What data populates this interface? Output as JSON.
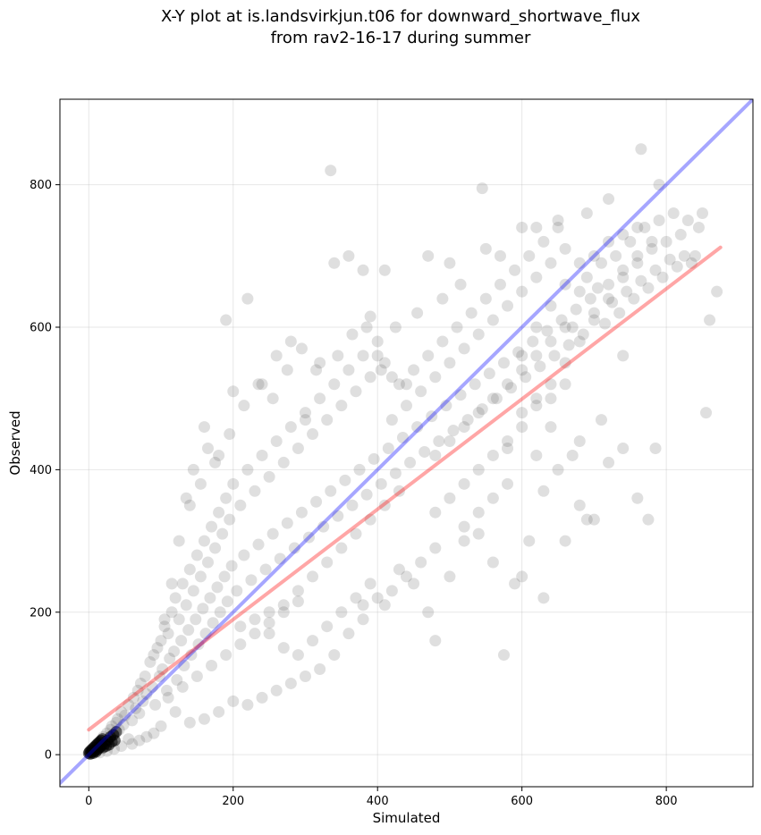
{
  "chart_data": {
    "type": "scatter",
    "title": [
      "X-Y plot at is.landsvirkjun.t06 for downward_shortwave_flux",
      "from rav2-16-17 during summer"
    ],
    "xlabel": "Simulated",
    "ylabel": "Observed",
    "xlim": [
      -40,
      920
    ],
    "ylim": [
      -45,
      920
    ],
    "xticks": [
      0,
      200,
      400,
      600,
      800
    ],
    "yticks": [
      0,
      200,
      400,
      600,
      800
    ],
    "grid": true,
    "reference_line": {
      "type": "1:1",
      "color": "#0000ff",
      "alpha": 0.35
    },
    "fit_line": {
      "type": "regression",
      "from": [
        0,
        35
      ],
      "to": [
        875,
        712
      ],
      "color": "#ff0000",
      "alpha": 0.35
    },
    "point_color": "#000000",
    "point_alpha": 0.15,
    "points": [
      [
        2,
        3
      ],
      [
        5,
        5
      ],
      [
        8,
        10
      ],
      [
        10,
        6
      ],
      [
        12,
        15
      ],
      [
        15,
        12
      ],
      [
        18,
        20
      ],
      [
        20,
        25
      ],
      [
        22,
        18
      ],
      [
        25,
        30
      ],
      [
        28,
        22
      ],
      [
        30,
        35
      ],
      [
        32,
        40
      ],
      [
        35,
        28
      ],
      [
        38,
        45
      ],
      [
        40,
        50
      ],
      [
        42,
        35
      ],
      [
        45,
        60
      ],
      [
        48,
        42
      ],
      [
        50,
        55
      ],
      [
        55,
        70
      ],
      [
        60,
        48
      ],
      [
        62,
        80
      ],
      [
        65,
        65
      ],
      [
        68,
        90
      ],
      [
        70,
        58
      ],
      [
        72,
        100
      ],
      [
        75,
        75
      ],
      [
        78,
        110
      ],
      [
        80,
        85
      ],
      [
        85,
        130
      ],
      [
        88,
        95
      ],
      [
        90,
        140
      ],
      [
        92,
        70
      ],
      [
        95,
        150
      ],
      [
        98,
        110
      ],
      [
        100,
        160
      ],
      [
        102,
        120
      ],
      [
        105,
        180
      ],
      [
        108,
        90
      ],
      [
        110,
        170
      ],
      [
        112,
        135
      ],
      [
        115,
        200
      ],
      [
        118,
        145
      ],
      [
        120,
        220
      ],
      [
        122,
        105
      ],
      [
        125,
        190
      ],
      [
        128,
        160
      ],
      [
        130,
        240
      ],
      [
        132,
        125
      ],
      [
        135,
        210
      ],
      [
        138,
        175
      ],
      [
        140,
        260
      ],
      [
        142,
        140
      ],
      [
        145,
        230
      ],
      [
        148,
        190
      ],
      [
        150,
        280
      ],
      [
        152,
        155
      ],
      [
        155,
        250
      ],
      [
        158,
        205
      ],
      [
        160,
        300
      ],
      [
        162,
        170
      ],
      [
        165,
        270
      ],
      [
        168,
        220
      ],
      [
        170,
        320
      ],
      [
        172,
        185
      ],
      [
        175,
        290
      ],
      [
        178,
        235
      ],
      [
        180,
        340
      ],
      [
        182,
        200
      ],
      [
        185,
        310
      ],
      [
        188,
        250
      ],
      [
        190,
        360
      ],
      [
        192,
        215
      ],
      [
        195,
        330
      ],
      [
        198,
        265
      ],
      [
        200,
        380
      ],
      [
        205,
        230
      ],
      [
        210,
        350
      ],
      [
        215,
        280
      ],
      [
        220,
        400
      ],
      [
        225,
        245
      ],
      [
        230,
        370
      ],
      [
        235,
        295
      ],
      [
        240,
        420
      ],
      [
        245,
        260
      ],
      [
        250,
        390
      ],
      [
        255,
        310
      ],
      [
        260,
        440
      ],
      [
        265,
        275
      ],
      [
        270,
        410
      ],
      [
        275,
        325
      ],
      [
        280,
        460
      ],
      [
        285,
        290
      ],
      [
        290,
        430
      ],
      [
        295,
        340
      ],
      [
        300,
        480
      ],
      [
        305,
        305
      ],
      [
        310,
        450
      ],
      [
        315,
        355
      ],
      [
        320,
        500
      ],
      [
        325,
        320
      ],
      [
        330,
        470
      ],
      [
        335,
        370
      ],
      [
        340,
        520
      ],
      [
        345,
        335
      ],
      [
        350,
        490
      ],
      [
        355,
        385
      ],
      [
        360,
        540
      ],
      [
        365,
        350
      ],
      [
        370,
        510
      ],
      [
        375,
        400
      ],
      [
        380,
        560
      ],
      [
        385,
        365
      ],
      [
        390,
        530
      ],
      [
        395,
        415
      ],
      [
        400,
        580
      ],
      [
        405,
        380
      ],
      [
        410,
        550
      ],
      [
        415,
        430
      ],
      [
        420,
        470
      ],
      [
        425,
        395
      ],
      [
        430,
        520
      ],
      [
        435,
        445
      ],
      [
        440,
        490
      ],
      [
        445,
        410
      ],
      [
        450,
        540
      ],
      [
        455,
        460
      ],
      [
        460,
        510
      ],
      [
        465,
        425
      ],
      [
        470,
        560
      ],
      [
        475,
        475
      ],
      [
        480,
        530
      ],
      [
        485,
        440
      ],
      [
        490,
        580
      ],
      [
        495,
        490
      ],
      [
        500,
        550
      ],
      [
        505,
        455
      ],
      [
        510,
        600
      ],
      [
        515,
        505
      ],
      [
        520,
        570
      ],
      [
        525,
        470
      ],
      [
        530,
        620
      ],
      [
        535,
        520
      ],
      [
        540,
        590
      ],
      [
        545,
        485
      ],
      [
        550,
        640
      ],
      [
        555,
        535
      ],
      [
        560,
        610
      ],
      [
        565,
        500
      ],
      [
        570,
        660
      ],
      [
        575,
        550
      ],
      [
        580,
        630
      ],
      [
        585,
        515
      ],
      [
        590,
        680
      ],
      [
        595,
        565
      ],
      [
        600,
        650
      ],
      [
        605,
        530
      ],
      [
        610,
        700
      ],
      [
        615,
        580
      ],
      [
        620,
        670
      ],
      [
        625,
        545
      ],
      [
        630,
        720
      ],
      [
        635,
        595
      ],
      [
        640,
        690
      ],
      [
        645,
        560
      ],
      [
        650,
        740
      ],
      [
        655,
        610
      ],
      [
        660,
        710
      ],
      [
        665,
        575
      ],
      [
        670,
        600
      ],
      [
        675,
        625
      ],
      [
        680,
        650
      ],
      [
        685,
        590
      ],
      [
        690,
        670
      ],
      [
        695,
        640
      ],
      [
        700,
        620
      ],
      [
        705,
        655
      ],
      [
        710,
        690
      ],
      [
        715,
        605
      ],
      [
        720,
        660
      ],
      [
        725,
        635
      ],
      [
        730,
        700
      ],
      [
        735,
        620
      ],
      [
        740,
        680
      ],
      [
        745,
        650
      ],
      [
        750,
        720
      ],
      [
        755,
        640
      ],
      [
        760,
        700
      ],
      [
        765,
        665
      ],
      [
        770,
        740
      ],
      [
        775,
        655
      ],
      [
        780,
        710
      ],
      [
        785,
        680
      ],
      [
        790,
        750
      ],
      [
        795,
        670
      ],
      [
        800,
        720
      ],
      [
        805,
        695
      ],
      [
        810,
        760
      ],
      [
        815,
        685
      ],
      [
        820,
        730
      ],
      [
        825,
        700
      ],
      [
        830,
        750
      ],
      [
        835,
        690
      ],
      [
        840,
        700
      ],
      [
        845,
        740
      ],
      [
        850,
        760
      ],
      [
        860,
        610
      ],
      [
        870,
        650
      ],
      [
        855,
        480
      ],
      [
        140,
        350
      ],
      [
        160,
        460
      ],
      [
        180,
        420
      ],
      [
        190,
        610
      ],
      [
        200,
        510
      ],
      [
        220,
        640
      ],
      [
        240,
        520
      ],
      [
        260,
        560
      ],
      [
        280,
        580
      ],
      [
        300,
        470
      ],
      [
        320,
        550
      ],
      [
        335,
        820
      ],
      [
        340,
        690
      ],
      [
        360,
        700
      ],
      [
        380,
        680
      ],
      [
        390,
        615
      ],
      [
        400,
        560
      ],
      [
        410,
        680
      ],
      [
        420,
        530
      ],
      [
        440,
        520
      ],
      [
        455,
        620
      ],
      [
        470,
        700
      ],
      [
        490,
        640
      ],
      [
        500,
        690
      ],
      [
        515,
        660
      ],
      [
        545,
        795
      ],
      [
        550,
        710
      ],
      [
        570,
        700
      ],
      [
        600,
        740
      ],
      [
        620,
        740
      ],
      [
        650,
        750
      ],
      [
        690,
        760
      ],
      [
        720,
        780
      ],
      [
        765,
        850
      ],
      [
        790,
        800
      ],
      [
        740,
        560
      ],
      [
        760,
        360
      ],
      [
        775,
        330
      ],
      [
        785,
        430
      ],
      [
        710,
        470
      ],
      [
        690,
        330
      ],
      [
        670,
        420
      ],
      [
        650,
        400
      ],
      [
        630,
        370
      ],
      [
        610,
        300
      ],
      [
        590,
        240
      ],
      [
        575,
        140
      ],
      [
        560,
        270
      ],
      [
        540,
        310
      ],
      [
        520,
        300
      ],
      [
        500,
        250
      ],
      [
        480,
        160
      ],
      [
        470,
        200
      ],
      [
        450,
        240
      ],
      [
        430,
        260
      ],
      [
        410,
        210
      ],
      [
        380,
        190
      ],
      [
        360,
        170
      ],
      [
        340,
        140
      ],
      [
        320,
        120
      ],
      [
        300,
        110
      ],
      [
        280,
        100
      ],
      [
        260,
        90
      ],
      [
        240,
        80
      ],
      [
        220,
        70
      ],
      [
        200,
        75
      ],
      [
        180,
        60
      ],
      [
        160,
        50
      ],
      [
        140,
        45
      ],
      [
        120,
        60
      ],
      [
        100,
        40
      ],
      [
        90,
        30
      ],
      [
        80,
        25
      ],
      [
        70,
        20
      ],
      [
        60,
        15
      ],
      [
        55,
        22
      ],
      [
        45,
        12
      ],
      [
        35,
        8
      ],
      [
        25,
        5
      ],
      [
        15,
        3
      ],
      [
        600,
        250
      ],
      [
        630,
        220
      ],
      [
        660,
        300
      ],
      [
        680,
        350
      ],
      [
        700,
        330
      ],
      [
        720,
        410
      ],
      [
        740,
        430
      ],
      [
        680,
        440
      ],
      [
        640,
        460
      ],
      [
        620,
        420
      ],
      [
        580,
        380
      ],
      [
        560,
        360
      ],
      [
        540,
        340
      ],
      [
        520,
        320
      ],
      [
        480,
        290
      ],
      [
        460,
        270
      ],
      [
        440,
        250
      ],
      [
        420,
        230
      ],
      [
        400,
        220
      ],
      [
        380,
        210
      ],
      [
        250,
        200
      ],
      [
        270,
        210
      ],
      [
        290,
        230
      ],
      [
        310,
        250
      ],
      [
        330,
        270
      ],
      [
        350,
        290
      ],
      [
        370,
        310
      ],
      [
        390,
        330
      ],
      [
        410,
        350
      ],
      [
        430,
        370
      ],
      [
        210,
        180
      ],
      [
        230,
        190
      ],
      [
        250,
        170
      ],
      [
        270,
        150
      ],
      [
        290,
        140
      ],
      [
        310,
        160
      ],
      [
        330,
        180
      ],
      [
        350,
        200
      ],
      [
        370,
        220
      ],
      [
        390,
        240
      ],
      [
        110,
        80
      ],
      [
        130,
        95
      ],
      [
        150,
        110
      ],
      [
        170,
        125
      ],
      [
        190,
        140
      ],
      [
        210,
        155
      ],
      [
        230,
        170
      ],
      [
        250,
        185
      ],
      [
        270,
        200
      ],
      [
        290,
        215
      ],
      [
        105,
        190
      ],
      [
        115,
        240
      ],
      [
        125,
        300
      ],
      [
        135,
        360
      ],
      [
        145,
        400
      ],
      [
        155,
        380
      ],
      [
        165,
        430
      ],
      [
        175,
        410
      ],
      [
        195,
        450
      ],
      [
        215,
        490
      ],
      [
        235,
        520
      ],
      [
        255,
        500
      ],
      [
        275,
        540
      ],
      [
        295,
        570
      ],
      [
        315,
        540
      ],
      [
        345,
        560
      ],
      [
        365,
        590
      ],
      [
        385,
        600
      ],
      [
        405,
        540
      ],
      [
        425,
        600
      ],
      [
        580,
        430
      ],
      [
        600,
        460
      ],
      [
        620,
        490
      ],
      [
        640,
        520
      ],
      [
        660,
        550
      ],
      [
        680,
        580
      ],
      [
        700,
        610
      ],
      [
        720,
        640
      ],
      [
        740,
        670
      ],
      [
        760,
        690
      ],
      [
        600,
        560
      ],
      [
        620,
        600
      ],
      [
        640,
        630
      ],
      [
        660,
        660
      ],
      [
        680,
        690
      ],
      [
        700,
        700
      ],
      [
        720,
        720
      ],
      [
        740,
        730
      ],
      [
        760,
        740
      ],
      [
        780,
        720
      ],
      [
        480,
        420
      ],
      [
        500,
        440
      ],
      [
        520,
        460
      ],
      [
        540,
        480
      ],
      [
        560,
        500
      ],
      [
        580,
        520
      ],
      [
        600,
        540
      ],
      [
        620,
        560
      ],
      [
        640,
        580
      ],
      [
        660,
        600
      ],
      [
        480,
        340
      ],
      [
        500,
        360
      ],
      [
        520,
        380
      ],
      [
        540,
        400
      ],
      [
        560,
        420
      ],
      [
        580,
        440
      ],
      [
        600,
        480
      ],
      [
        620,
        500
      ],
      [
        640,
        500
      ],
      [
        660,
        520
      ]
    ],
    "dense_points": [
      [
        0,
        2
      ],
      [
        1,
        4
      ],
      [
        2,
        1
      ],
      [
        3,
        6
      ],
      [
        4,
        3
      ],
      [
        5,
        8
      ],
      [
        6,
        2
      ],
      [
        7,
        10
      ],
      [
        8,
        5
      ],
      [
        9,
        12
      ],
      [
        10,
        4
      ],
      [
        11,
        14
      ],
      [
        12,
        7
      ],
      [
        13,
        16
      ],
      [
        14,
        9
      ],
      [
        15,
        18
      ],
      [
        16,
        11
      ],
      [
        17,
        20
      ],
      [
        18,
        13
      ],
      [
        19,
        22
      ],
      [
        20,
        10
      ],
      [
        22,
        15
      ],
      [
        24,
        12
      ],
      [
        26,
        20
      ],
      [
        28,
        14
      ],
      [
        30,
        25
      ],
      [
        32,
        18
      ],
      [
        34,
        28
      ],
      [
        36,
        20
      ],
      [
        38,
        32
      ]
    ]
  }
}
